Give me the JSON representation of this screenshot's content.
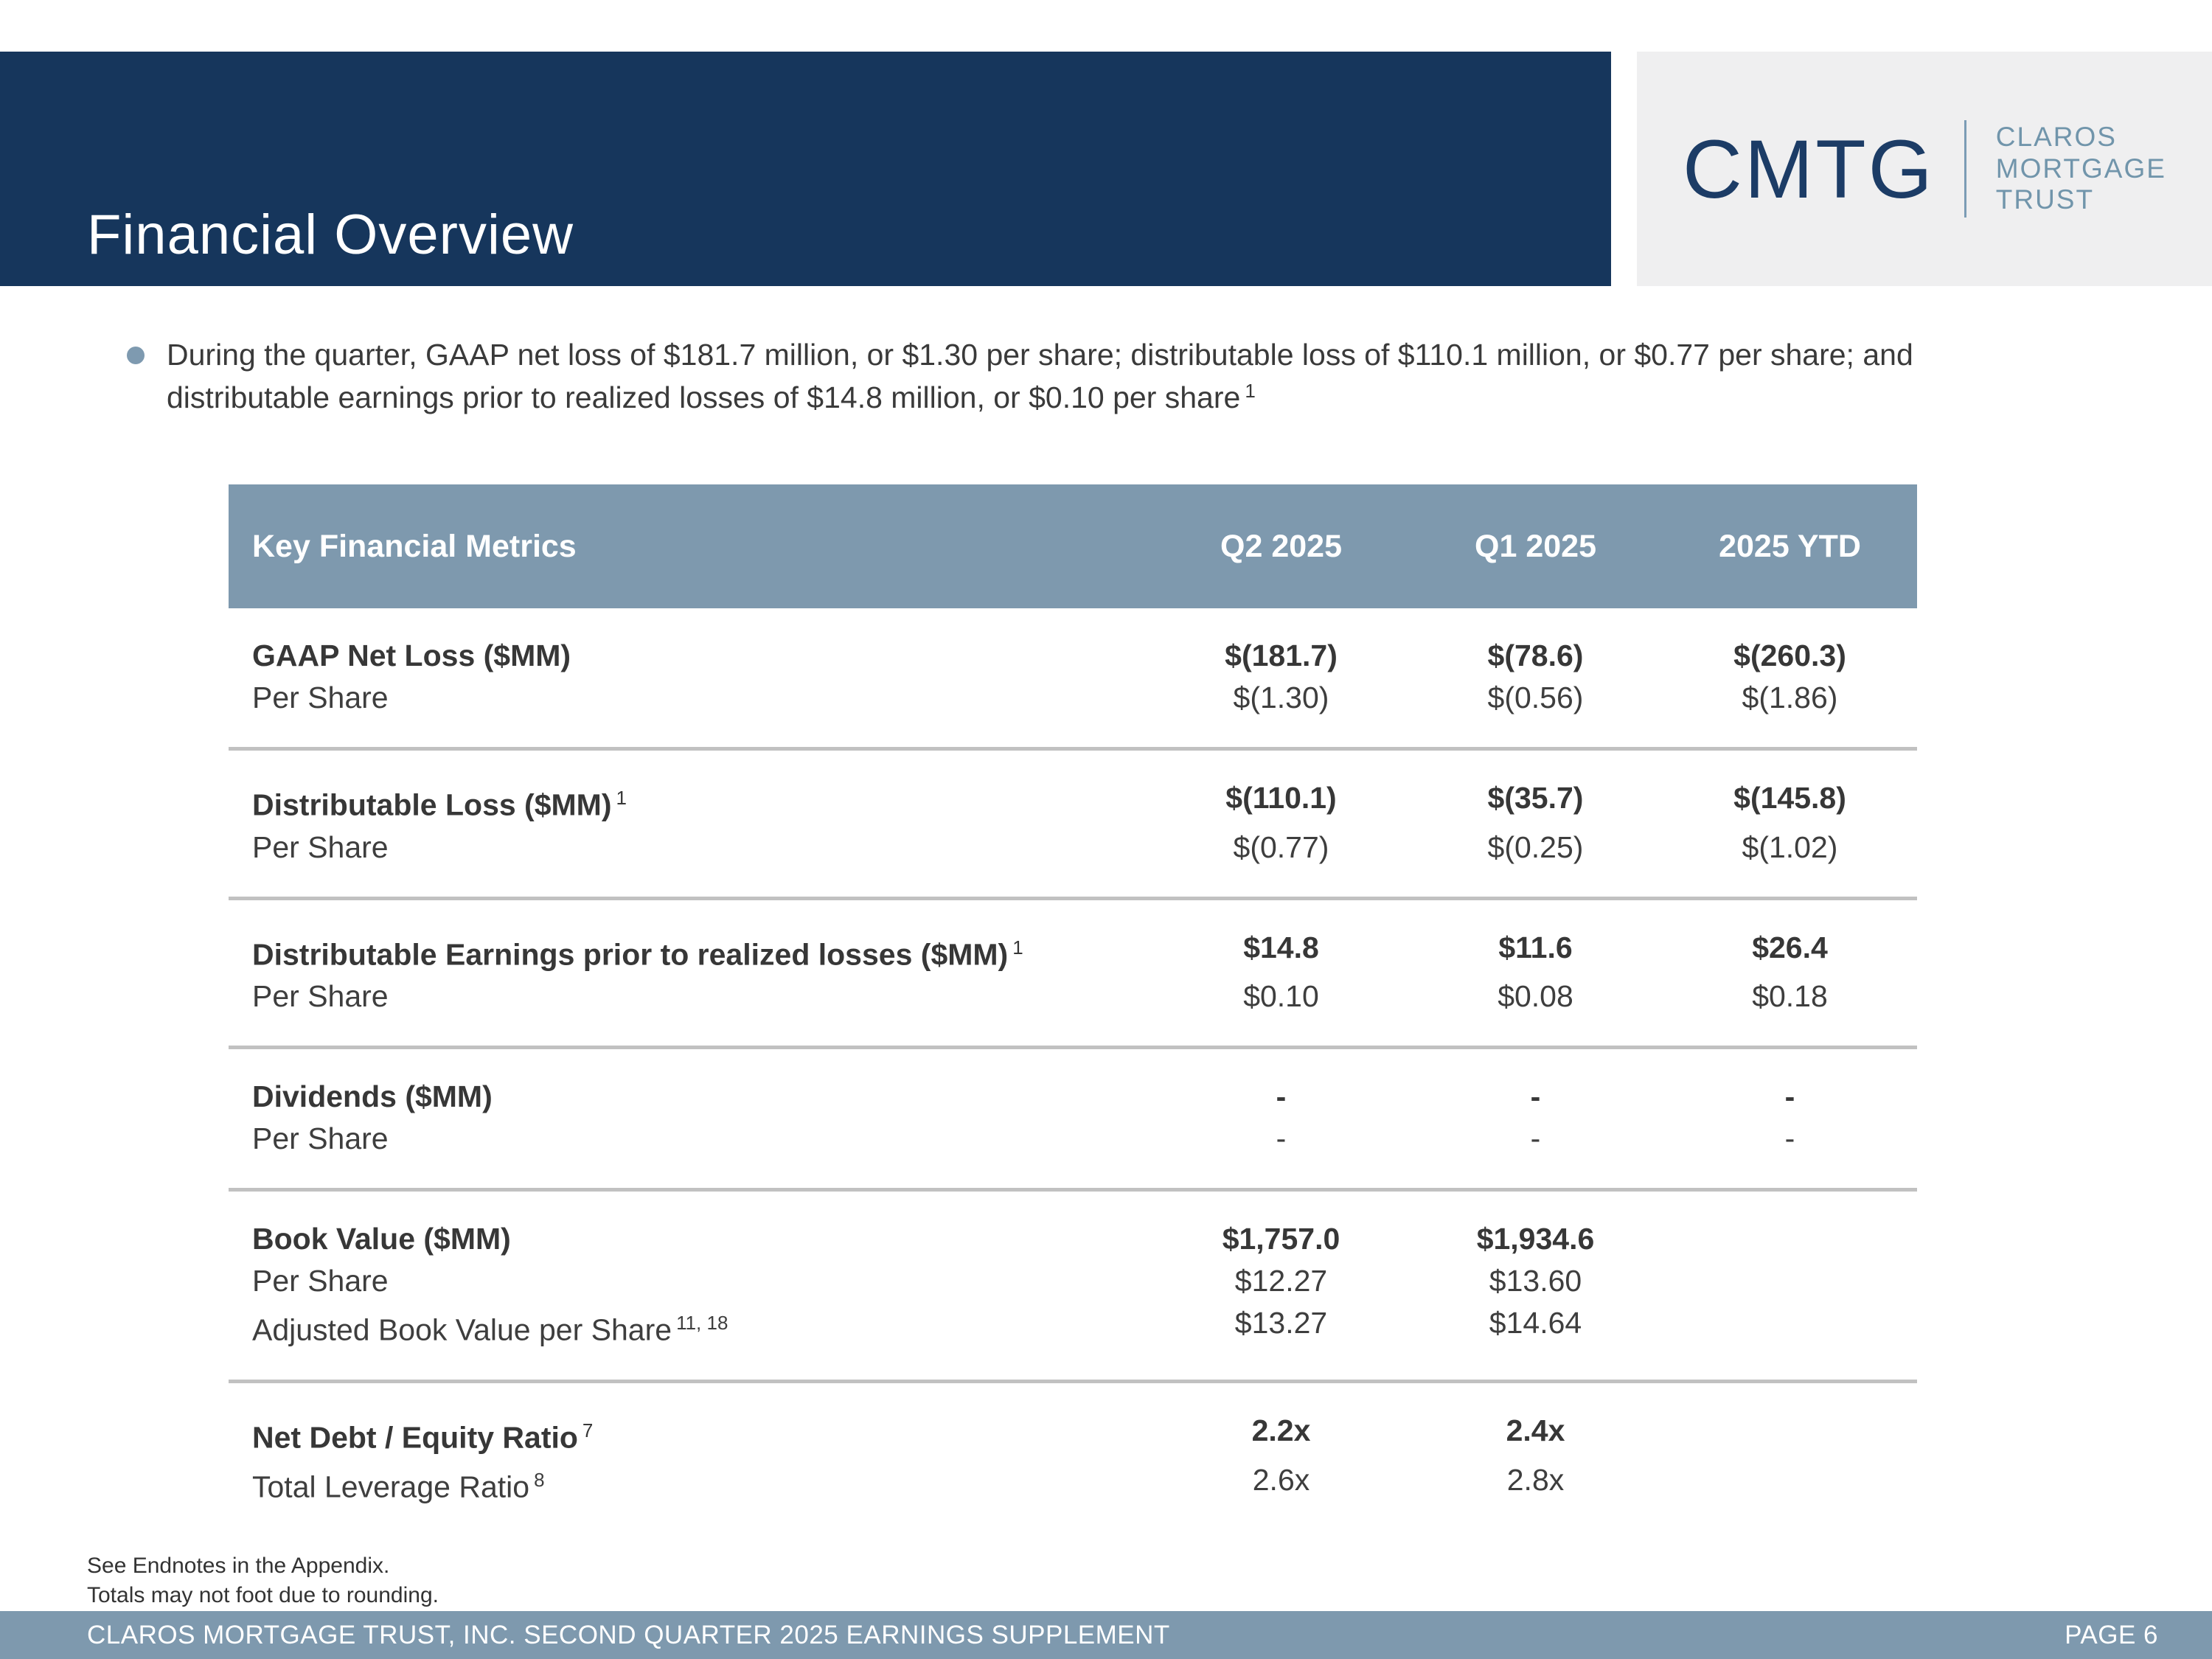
{
  "slide": {
    "title": "Financial Overview",
    "footer_text": "CLAROS MORTGAGE TRUST, INC. SECOND QUARTER 2025 EARNINGS SUPPLEMENT",
    "page_label": "PAGE 6",
    "footnotes": [
      "See Endnotes in the Appendix.",
      "Totals may not foot due to rounding."
    ]
  },
  "logo": {
    "acronym": "CMTG",
    "name_lines": [
      "CLAROS",
      "MORTGAGE",
      "TRUST"
    ]
  },
  "bullet": {
    "text": "During the quarter, GAAP net loss of $181.7 million, or $1.30 per share; distributable loss of $110.1 million, or $0.77 per share; and distributable earnings prior to realized losses of $14.8 million, or $0.10 per share",
    "superscript": "1"
  },
  "table": {
    "headers": [
      "Key Financial Metrics",
      "Q2 2025",
      "Q1 2025",
      "2025 YTD"
    ],
    "groups": [
      {
        "rows": [
          {
            "label": "GAAP Net Loss ($MM)",
            "sup": "",
            "bold": true,
            "values": [
              "$(181.7)",
              "$(78.6)",
              "$(260.3)"
            ]
          },
          {
            "label": "Per Share",
            "sup": "",
            "bold": false,
            "values": [
              "$(1.30)",
              "$(0.56)",
              "$(1.86)"
            ]
          }
        ]
      },
      {
        "rows": [
          {
            "label": "Distributable Loss ($MM)",
            "sup": "1",
            "bold": true,
            "values": [
              "$(110.1)",
              "$(35.7)",
              "$(145.8)"
            ]
          },
          {
            "label": "Per Share",
            "sup": "",
            "bold": false,
            "values": [
              "$(0.77)",
              "$(0.25)",
              "$(1.02)"
            ]
          }
        ]
      },
      {
        "rows": [
          {
            "label": "Distributable Earnings prior to realized losses ($MM)",
            "sup": "1",
            "bold": true,
            "values": [
              "$14.8",
              "$11.6",
              "$26.4"
            ]
          },
          {
            "label": "Per Share",
            "sup": "",
            "bold": false,
            "values": [
              "$0.10",
              "$0.08",
              "$0.18"
            ]
          }
        ]
      },
      {
        "rows": [
          {
            "label": "Dividends ($MM)",
            "sup": "",
            "bold": true,
            "values": [
              "-",
              "-",
              "-"
            ]
          },
          {
            "label": "Per Share",
            "sup": "",
            "bold": false,
            "values": [
              "-",
              "-",
              "-"
            ]
          }
        ]
      },
      {
        "rows": [
          {
            "label": "Book Value ($MM)",
            "sup": "",
            "bold": true,
            "values": [
              "$1,757.0",
              "$1,934.6",
              ""
            ]
          },
          {
            "label": "Per Share",
            "sup": "",
            "bold": false,
            "values": [
              "$12.27",
              "$13.60",
              ""
            ]
          },
          {
            "label": "Adjusted Book Value per Share",
            "sup": "11, 18",
            "bold": false,
            "values": [
              "$13.27",
              "$14.64",
              ""
            ]
          }
        ]
      },
      {
        "rows": [
          {
            "label": "Net Debt / Equity Ratio",
            "sup": "7",
            "bold": true,
            "values": [
              "2.2x",
              "2.4x",
              ""
            ]
          },
          {
            "label": "Total Leverage Ratio",
            "sup": "8",
            "bold": false,
            "values": [
              "2.6x",
              "2.8x",
              ""
            ]
          }
        ]
      }
    ]
  },
  "colors": {
    "banner_navy": "#16365C",
    "band_blue": "#7E99AE",
    "logo_gray": "#EFEFF0",
    "divider_gray": "#C1C1C1",
    "logo_navy": "#1C3C66",
    "logo_steel": "#7195AB",
    "bullet_dot": "#7E9AB0"
  }
}
